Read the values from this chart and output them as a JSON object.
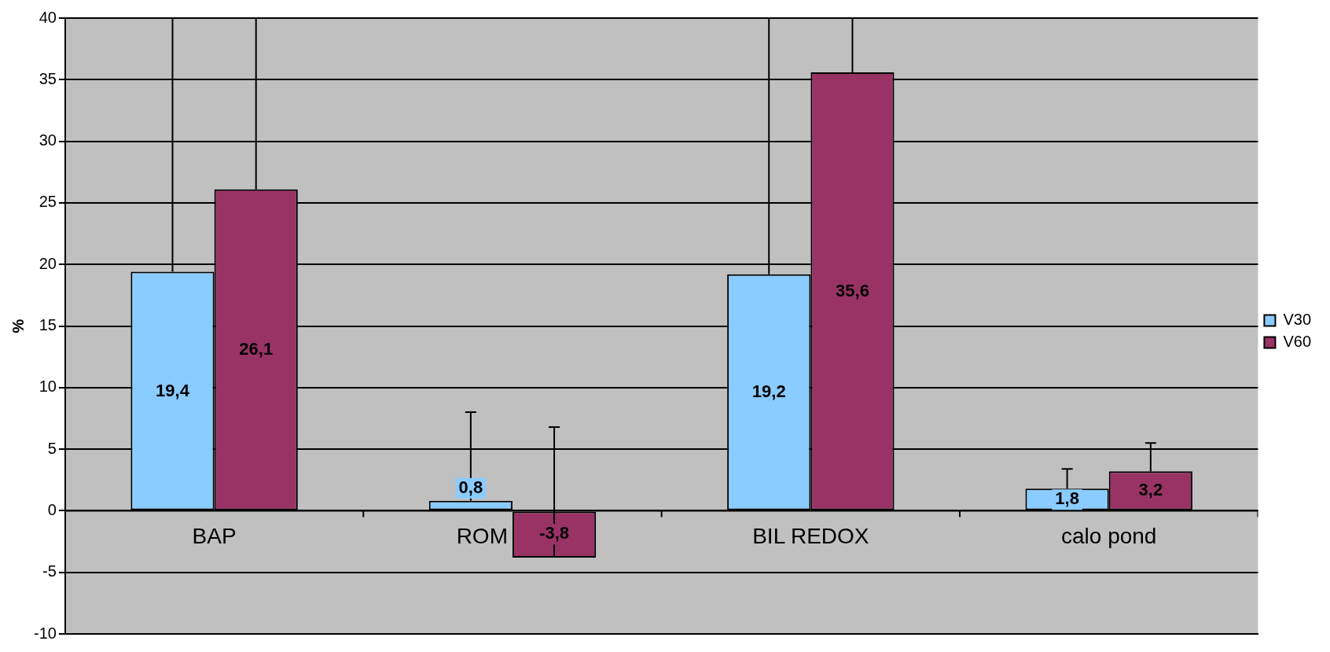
{
  "chart_data": {
    "type": "bar",
    "ylabel": "%",
    "categories": [
      "BAP",
      "ROM",
      "BIL REDOX",
      "calo pond"
    ],
    "series": [
      {
        "name": "V30",
        "color": "#8accff",
        "values": [
          19.4,
          0.8,
          19.2,
          1.8
        ],
        "value_labels": [
          "19,4",
          "0,8",
          "19,2",
          "1,8"
        ],
        "errors": [
          [
            19.4,
            40
          ],
          [
            0.8,
            8
          ],
          [
            19.2,
            40
          ],
          [
            1.8,
            3.4
          ]
        ]
      },
      {
        "name": "V60",
        "color": "#993366",
        "values": [
          26.1,
          -3.8,
          35.6,
          3.2
        ],
        "value_labels": [
          "26,1",
          "-3,8",
          "35,6",
          "3,2"
        ],
        "errors": [
          [
            26.1,
            40
          ],
          [
            -3.8,
            6.8
          ],
          [
            35.6,
            40
          ],
          [
            3.2,
            5.5
          ]
        ]
      }
    ],
    "ylim": [
      -10,
      40
    ],
    "yticks": [
      -10,
      -5,
      0,
      5,
      10,
      15,
      20,
      25,
      30,
      35,
      40
    ],
    "grid": "y",
    "legend": "right"
  }
}
